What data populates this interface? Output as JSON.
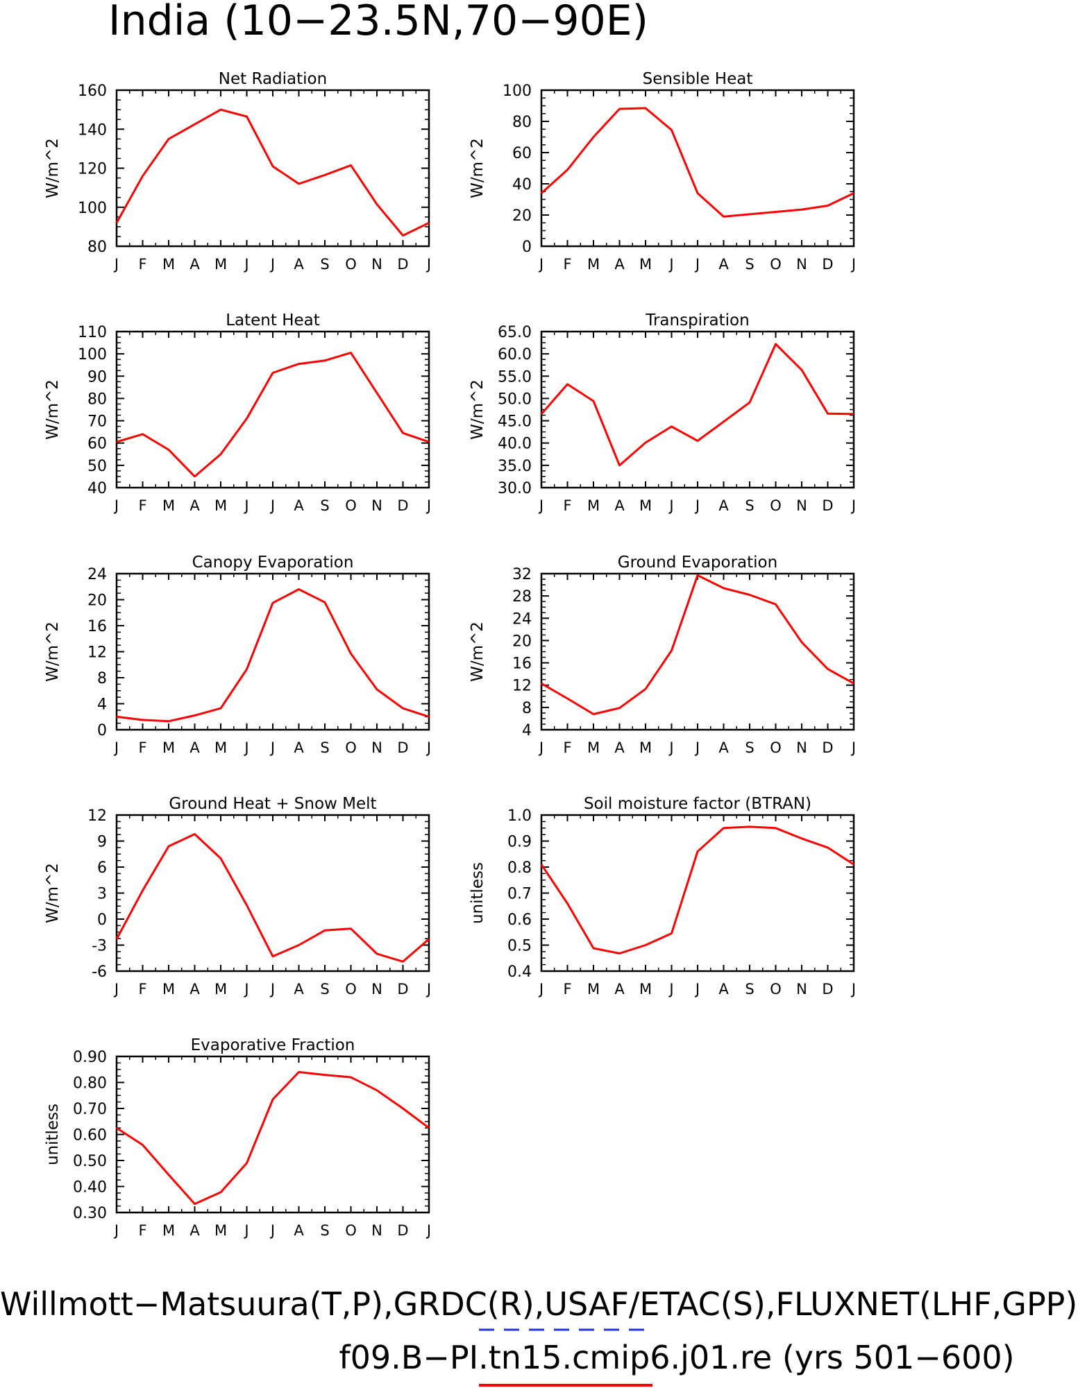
{
  "page_title": "India (10−23.5N,70−90E)",
  "footer": {
    "line1": "Willmott−Matsuura(T,P),GRDC(R),USAF/ETAC(S),FLUXNET(LHF,GPP)",
    "line2": "f09.B−PI.tn15.cmip6.j01.re (yrs 501−600)",
    "line1_legend_color": "#2233dd",
    "line2_legend_color": "#ff0000"
  },
  "line_color": "#ff0000",
  "chart_data": [
    {
      "type": "line",
      "title": "Net Radiation",
      "ylabel": "W/m^2",
      "categories": [
        "J",
        "F",
        "M",
        "A",
        "M",
        "J",
        "J",
        "A",
        "S",
        "O",
        "N",
        "D",
        "J"
      ],
      "ylim": [
        80,
        160
      ],
      "ytick_labels": [
        "80",
        "100",
        "120",
        "140",
        "160"
      ],
      "values": [
        92,
        116,
        135,
        142.5,
        150,
        146.5,
        121,
        112,
        116.5,
        121.5,
        101.5,
        85.5,
        92
      ]
    },
    {
      "type": "line",
      "title": "Sensible Heat",
      "ylabel": "W/m^2",
      "categories": [
        "J",
        "F",
        "M",
        "A",
        "M",
        "J",
        "J",
        "A",
        "S",
        "O",
        "N",
        "D",
        "J"
      ],
      "ylim": [
        0,
        100
      ],
      "ytick_labels": [
        "0",
        "20",
        "40",
        "60",
        "80",
        "100"
      ],
      "values": [
        34,
        49,
        70,
        88,
        88.5,
        74.5,
        34,
        19,
        20.5,
        22,
        23.5,
        26,
        34
      ]
    },
    {
      "type": "line",
      "title": "Latent Heat",
      "ylabel": "W/m^2",
      "categories": [
        "J",
        "F",
        "M",
        "A",
        "M",
        "J",
        "J",
        "A",
        "S",
        "O",
        "N",
        "D",
        "J"
      ],
      "ylim": [
        40,
        110
      ],
      "ytick_labels": [
        "40",
        "50",
        "60",
        "70",
        "80",
        "90",
        "100",
        "110"
      ],
      "values": [
        60.5,
        64,
        57,
        45,
        55,
        71,
        91.5,
        95.5,
        97,
        100.5,
        82.5,
        64.5,
        60.5
      ]
    },
    {
      "type": "line",
      "title": "Transpiration",
      "ylabel": "W/m^2",
      "categories": [
        "J",
        "F",
        "M",
        "A",
        "M",
        "J",
        "J",
        "A",
        "S",
        "O",
        "N",
        "D",
        "J"
      ],
      "ylim": [
        30,
        65
      ],
      "ytick_labels": [
        "30.0",
        "35.0",
        "40.0",
        "45.0",
        "50.0",
        "55.0",
        "60.0",
        "65.0"
      ],
      "values": [
        46.5,
        53.2,
        49.4,
        35,
        40.1,
        43.7,
        40.5,
        44.8,
        49.1,
        62.2,
        56.4,
        46.6,
        46.5
      ]
    },
    {
      "type": "line",
      "title": "Canopy Evaporation",
      "ylabel": "W/m^2",
      "categories": [
        "J",
        "F",
        "M",
        "A",
        "M",
        "J",
        "J",
        "A",
        "S",
        "O",
        "N",
        "D",
        "J"
      ],
      "ylim": [
        0,
        24
      ],
      "ytick_labels": [
        "0",
        "4",
        "8",
        "12",
        "16",
        "20",
        "24"
      ],
      "values": [
        2,
        1.5,
        1.3,
        2.2,
        3.3,
        9.3,
        19.5,
        21.6,
        19.6,
        11.7,
        6.2,
        3.3,
        2
      ]
    },
    {
      "type": "line",
      "title": "Ground Evaporation",
      "ylabel": "W/m^2",
      "categories": [
        "J",
        "F",
        "M",
        "A",
        "M",
        "J",
        "J",
        "A",
        "S",
        "O",
        "N",
        "D",
        "J"
      ],
      "ylim": [
        4,
        32
      ],
      "ytick_labels": [
        "4",
        "8",
        "12",
        "16",
        "20",
        "24",
        "28",
        "32"
      ],
      "values": [
        12.3,
        9.6,
        6.8,
        7.9,
        11.3,
        18.2,
        31.7,
        29.4,
        28.2,
        26.5,
        19.7,
        14.9,
        12.3
      ]
    },
    {
      "type": "line",
      "title": "Ground Heat + Snow Melt",
      "ylabel": "W/m^2",
      "categories": [
        "J",
        "F",
        "M",
        "A",
        "M",
        "J",
        "J",
        "A",
        "S",
        "O",
        "N",
        "D",
        "J"
      ],
      "ylim": [
        -6,
        12
      ],
      "ytick_labels": [
        "-6",
        "-3",
        "0",
        "3",
        "6",
        "9",
        "12"
      ],
      "values": [
        -2.3,
        3.3,
        8.4,
        9.8,
        7,
        1.6,
        -4.3,
        -3,
        -1.3,
        -1.1,
        -4,
        -4.9,
        -2.3
      ]
    },
    {
      "type": "line",
      "title": "Soil moisture factor (BTRAN)",
      "ylabel": "unitless",
      "categories": [
        "J",
        "F",
        "M",
        "A",
        "M",
        "J",
        "J",
        "A",
        "S",
        "O",
        "N",
        "D",
        "J"
      ],
      "ylim": [
        0.4,
        1.0
      ],
      "ytick_labels": [
        "0.4",
        "0.5",
        "0.6",
        "0.7",
        "0.8",
        "0.9",
        "1.0"
      ],
      "values": [
        0.81,
        0.66,
        0.488,
        0.468,
        0.5,
        0.545,
        0.86,
        0.95,
        0.955,
        0.95,
        0.91,
        0.875,
        0.81
      ]
    },
    {
      "type": "line",
      "title": "Evaporative Fraction",
      "ylabel": "unitless",
      "categories": [
        "J",
        "F",
        "M",
        "A",
        "M",
        "J",
        "J",
        "A",
        "S",
        "O",
        "N",
        "D",
        "J"
      ],
      "ylim": [
        0.3,
        0.9
      ],
      "ytick_labels": [
        "0.30",
        "0.40",
        "0.50",
        "0.60",
        "0.70",
        "0.80",
        "0.90"
      ],
      "values": [
        0.625,
        0.56,
        0.445,
        0.333,
        0.378,
        0.49,
        0.735,
        0.84,
        0.829,
        0.82,
        0.77,
        0.7,
        0.625
      ]
    }
  ]
}
